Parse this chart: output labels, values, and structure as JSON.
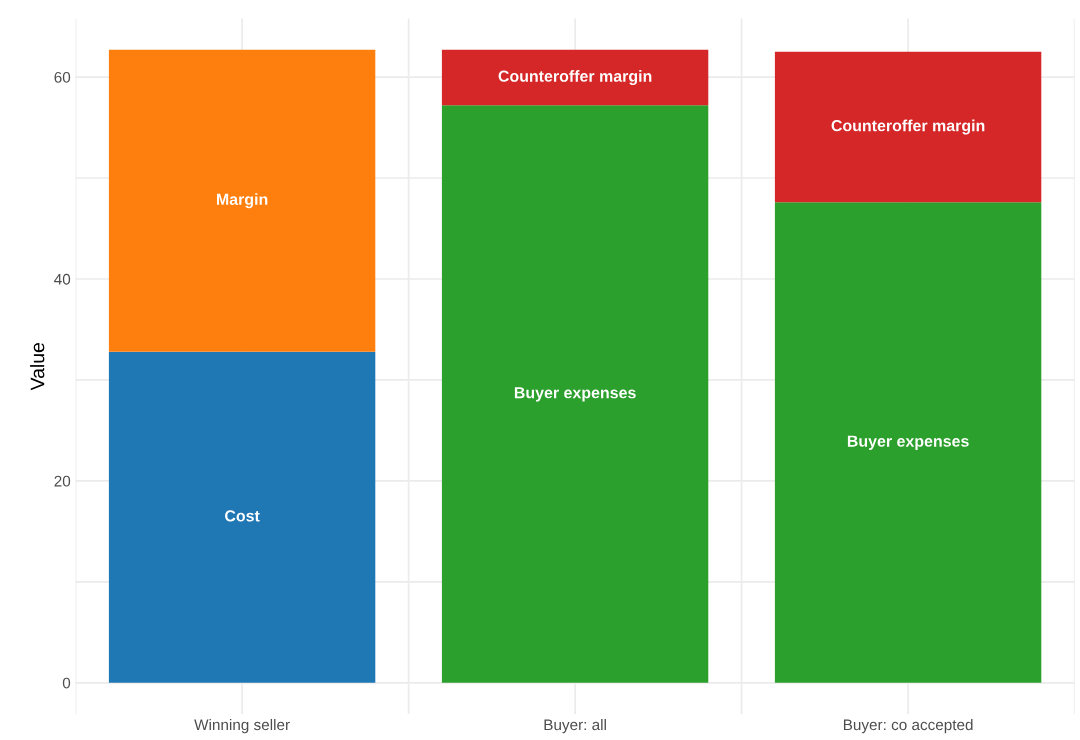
{
  "chart_data": {
    "type": "bar",
    "stacked": true,
    "ylabel": "Value",
    "categories": [
      "Winning seller",
      "Buyer: all",
      "Buyer: co accepted"
    ],
    "series": [
      {
        "name": "Cost",
        "color": "#1f77b4",
        "values": [
          32.8,
          null,
          null
        ]
      },
      {
        "name": "Margin",
        "color": "#ff7f0e",
        "values": [
          29.9,
          null,
          null
        ]
      },
      {
        "name": "Buyer expenses",
        "color": "#2ca02c",
        "values": [
          null,
          57.2,
          47.6
        ]
      },
      {
        "name": "Counteroffer margin",
        "color": "#d62728",
        "values": [
          null,
          5.5,
          14.9
        ]
      }
    ],
    "ylim": [
      -3.1,
      65.8
    ],
    "yticks": [
      0,
      {
        "value": 10,
        "label": null
      },
      20,
      {
        "value": 30,
        "label": null
      },
      40,
      {
        "value": 50,
        "label": null
      },
      60
    ],
    "grid": true,
    "legend": false
  }
}
